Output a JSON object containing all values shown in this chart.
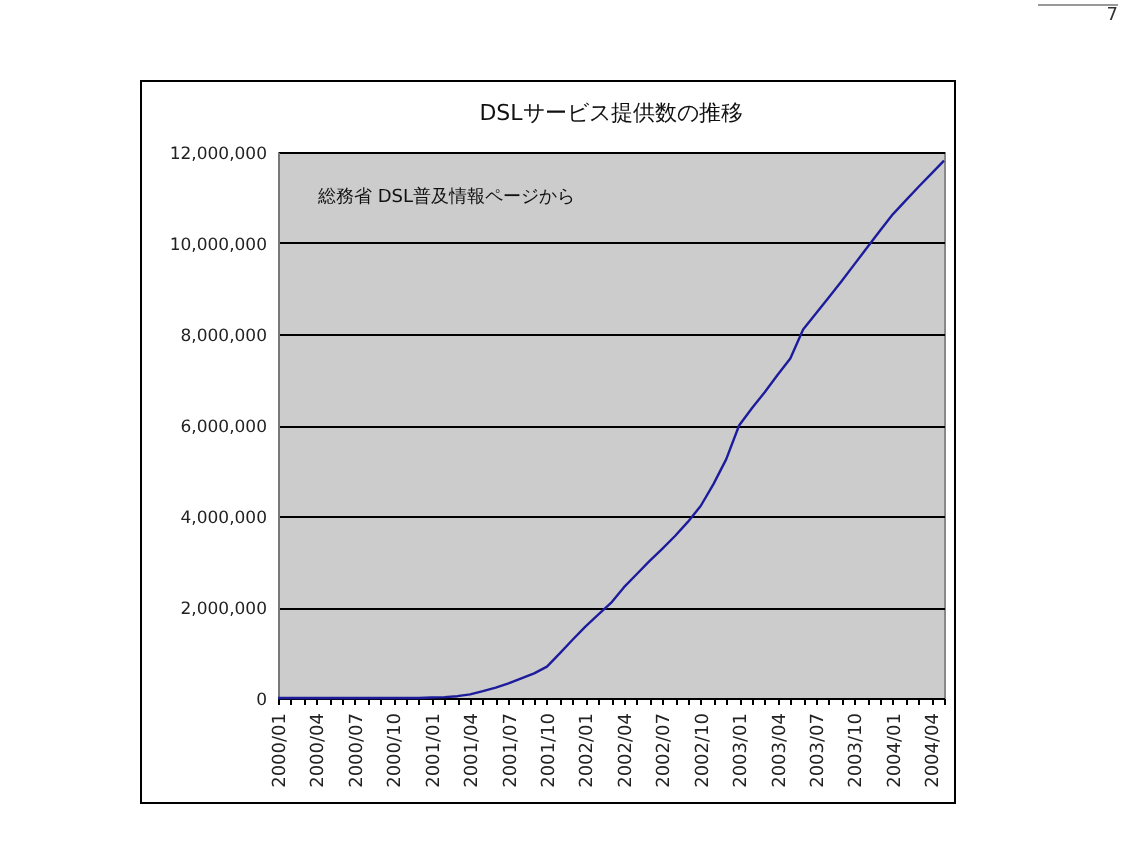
{
  "chart_data": {
    "type": "line",
    "title": "DSLサービス提供数の推移",
    "annotations": [
      "総務省 DSL普及情報ページから",
      "7"
    ],
    "categories": [
      "2000/01",
      null,
      null,
      "2000/04",
      null,
      null,
      "2000/07",
      null,
      null,
      "2000/10",
      null,
      null,
      "2001/01",
      null,
      null,
      "2001/04",
      null,
      null,
      "2001/07",
      null,
      null,
      "2001/10",
      null,
      null,
      "2002/01",
      null,
      null,
      "2002/04",
      null,
      null,
      "2002/07",
      null,
      null,
      "2002/10",
      null,
      null,
      "2003/01",
      null,
      null,
      "2003/04",
      null,
      null,
      "2003/07",
      null,
      null,
      "2003/10",
      null,
      null,
      "2004/01",
      null,
      null,
      "2004/04",
      null
    ],
    "series": [
      {
        "color": "#1c1c9c",
        "values": [
          0,
          0,
          0,
          0,
          0,
          0,
          0,
          0,
          0,
          0,
          0,
          0,
          10000,
          20000,
          40000,
          80000,
          150000,
          230000,
          320000,
          430000,
          540000,
          690000,
          980000,
          1280000,
          1570000,
          1830000,
          2090000,
          2430000,
          2720000,
          3010000,
          3280000,
          3560000,
          3870000,
          4220000,
          4700000,
          5250000,
          5990000,
          6370000,
          6720000,
          7100000,
          7460000,
          8100000,
          8450000,
          8800000,
          9160000,
          9530000,
          9900000,
          10270000,
          10630000,
          10930000,
          11230000,
          11520000,
          11810000
        ]
      }
    ],
    "ylim": [
      0,
      12000000
    ],
    "yticks": [
      0,
      {
        "value": 2000000,
        "label": "2,000,000"
      },
      {
        "value": 4000000,
        "label": "4,000,000"
      },
      {
        "value": 6000000,
        "label": "6,000,000"
      },
      {
        "value": 8000000,
        "label": "8,000,000"
      },
      {
        "value": 10000000,
        "label": "10,000,000"
      },
      {
        "value": 12000000,
        "label": "12,000,000"
      }
    ],
    "grid": "y",
    "marker": "none",
    "line_style": "solid"
  }
}
